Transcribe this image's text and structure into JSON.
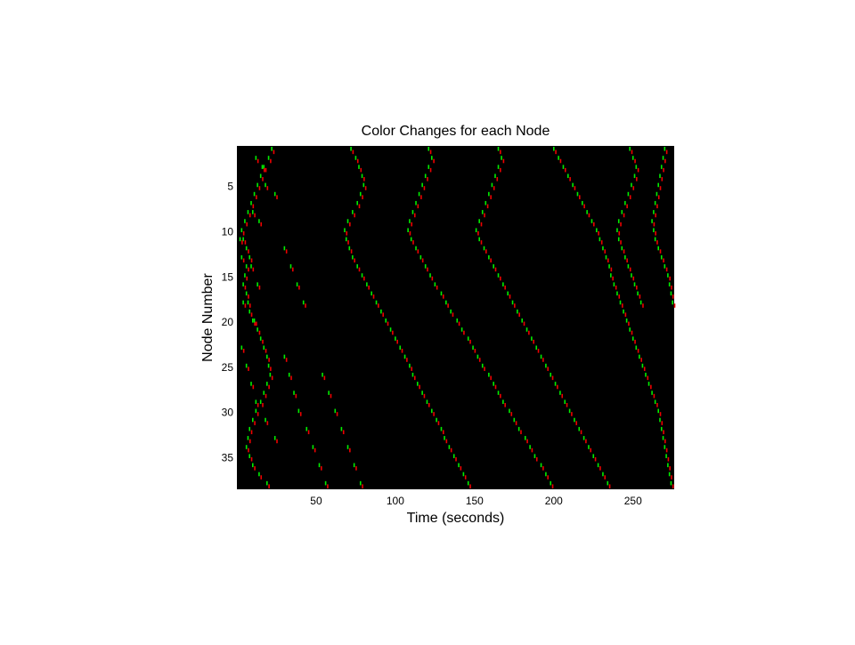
{
  "chart_data": {
    "type": "raster",
    "title": "Color Changes for each Node",
    "xlabel": "Time (seconds)",
    "ylabel": "Node Number",
    "xlim": [
      0,
      276
    ],
    "ylim": [
      0.5,
      38.5
    ],
    "y_reversed": true,
    "xticks": [
      50,
      100,
      150,
      200,
      250
    ],
    "yticks": [
      5,
      10,
      15,
      20,
      25,
      30,
      35
    ],
    "background": "#000000",
    "colors": {
      "green": "#00ee00",
      "red": "#ee0000"
    },
    "series": [
      {
        "points": [
          [
            22,
            1
          ],
          [
            20,
            2
          ],
          [
            17,
            3
          ],
          [
            15,
            4
          ],
          [
            13,
            5
          ],
          [
            11,
            6
          ],
          [
            9,
            7
          ],
          [
            7,
            8
          ],
          [
            5,
            9
          ],
          [
            3,
            10
          ],
          [
            4,
            11
          ],
          [
            6,
            12
          ],
          [
            8,
            13
          ],
          [
            6,
            14
          ],
          [
            5,
            15
          ],
          [
            4,
            16
          ],
          [
            6,
            17
          ],
          [
            7,
            18
          ],
          [
            8,
            19
          ],
          [
            10,
            20
          ],
          [
            13,
            21
          ],
          [
            15,
            22
          ],
          [
            17,
            23
          ],
          [
            19,
            24
          ],
          [
            20,
            25
          ],
          [
            21,
            26
          ],
          [
            19,
            27
          ],
          [
            17,
            28
          ],
          [
            15,
            29
          ],
          [
            12,
            30
          ],
          [
            10,
            31
          ],
          [
            8,
            32
          ],
          [
            7,
            33
          ],
          [
            6,
            34
          ],
          [
            8,
            35
          ],
          [
            10,
            36
          ],
          [
            14,
            37
          ],
          [
            19,
            38
          ]
        ]
      },
      {
        "points": [
          [
            72,
            1
          ],
          [
            75,
            2
          ],
          [
            77,
            3
          ],
          [
            79,
            4
          ],
          [
            80,
            5
          ],
          [
            78,
            6
          ],
          [
            76,
            7
          ],
          [
            73,
            8
          ],
          [
            70,
            9
          ],
          [
            68,
            10
          ],
          [
            69,
            11
          ],
          [
            71,
            12
          ],
          [
            73,
            13
          ],
          [
            76,
            14
          ],
          [
            79,
            15
          ],
          [
            82,
            16
          ],
          [
            85,
            17
          ],
          [
            88,
            18
          ],
          [
            91,
            19
          ],
          [
            94,
            20
          ],
          [
            97,
            21
          ],
          [
            100,
            22
          ],
          [
            103,
            23
          ],
          [
            106,
            24
          ],
          [
            109,
            25
          ],
          [
            111,
            26
          ],
          [
            114,
            27
          ],
          [
            117,
            28
          ],
          [
            120,
            29
          ],
          [
            123,
            30
          ],
          [
            126,
            31
          ],
          [
            129,
            32
          ],
          [
            131,
            33
          ],
          [
            134,
            34
          ],
          [
            137,
            35
          ],
          [
            140,
            36
          ],
          [
            143,
            37
          ],
          [
            146,
            38
          ]
        ]
      },
      {
        "points": [
          [
            121,
            1
          ],
          [
            123,
            2
          ],
          [
            121,
            3
          ],
          [
            119,
            4
          ],
          [
            117,
            5
          ],
          [
            115,
            6
          ],
          [
            113,
            7
          ],
          [
            111,
            8
          ],
          [
            109,
            9
          ],
          [
            108,
            10
          ],
          [
            110,
            11
          ],
          [
            113,
            12
          ],
          [
            116,
            13
          ],
          [
            119,
            14
          ],
          [
            122,
            15
          ],
          [
            125,
            16
          ],
          [
            129,
            17
          ],
          [
            132,
            18
          ],
          [
            135,
            19
          ],
          [
            139,
            20
          ],
          [
            142,
            21
          ],
          [
            146,
            22
          ],
          [
            149,
            23
          ],
          [
            152,
            24
          ],
          [
            155,
            25
          ],
          [
            159,
            26
          ],
          [
            162,
            27
          ],
          [
            165,
            28
          ],
          [
            168,
            29
          ],
          [
            172,
            30
          ],
          [
            175,
            31
          ],
          [
            178,
            32
          ],
          [
            182,
            33
          ],
          [
            185,
            34
          ],
          [
            188,
            35
          ],
          [
            192,
            36
          ],
          [
            195,
            37
          ],
          [
            198,
            38
          ]
        ]
      },
      {
        "points": [
          [
            165,
            1
          ],
          [
            167,
            2
          ],
          [
            165,
            3
          ],
          [
            163,
            4
          ],
          [
            161,
            5
          ],
          [
            159,
            6
          ],
          [
            157,
            7
          ],
          [
            155,
            8
          ],
          [
            153,
            9
          ],
          [
            151,
            10
          ],
          [
            153,
            11
          ],
          [
            156,
            12
          ],
          [
            159,
            13
          ],
          [
            162,
            14
          ],
          [
            165,
            15
          ],
          [
            168,
            16
          ],
          [
            171,
            17
          ],
          [
            174,
            18
          ],
          [
            177,
            19
          ],
          [
            180,
            20
          ],
          [
            183,
            21
          ],
          [
            186,
            22
          ],
          [
            189,
            23
          ],
          [
            192,
            24
          ],
          [
            195,
            25
          ],
          [
            198,
            26
          ],
          [
            201,
            27
          ],
          [
            204,
            28
          ],
          [
            207,
            29
          ],
          [
            210,
            30
          ],
          [
            213,
            31
          ],
          [
            216,
            32
          ],
          [
            219,
            33
          ],
          [
            222,
            34
          ],
          [
            225,
            35
          ],
          [
            228,
            36
          ],
          [
            231,
            37
          ],
          [
            234,
            38
          ]
        ]
      },
      {
        "points": [
          [
            200,
            1
          ],
          [
            203,
            2
          ],
          [
            206,
            3
          ],
          [
            209,
            4
          ],
          [
            212,
            5
          ],
          [
            215,
            6
          ],
          [
            218,
            7
          ],
          [
            221,
            8
          ],
          [
            224,
            9
          ],
          [
            227,
            10
          ],
          [
            229,
            11
          ],
          [
            231,
            12
          ],
          [
            233,
            13
          ],
          [
            235,
            14
          ],
          [
            236,
            15
          ],
          [
            238,
            16
          ],
          [
            240,
            17
          ],
          [
            242,
            18
          ],
          [
            244,
            19
          ],
          [
            246,
            20
          ],
          [
            248,
            21
          ],
          [
            250,
            22
          ],
          [
            252,
            23
          ],
          [
            254,
            24
          ],
          [
            256,
            25
          ],
          [
            258,
            26
          ],
          [
            260,
            27
          ],
          [
            262,
            28
          ],
          [
            264,
            29
          ],
          [
            266,
            30
          ],
          [
            267,
            31
          ],
          [
            268,
            32
          ],
          [
            269,
            33
          ],
          [
            270,
            34
          ],
          [
            271,
            35
          ],
          [
            272,
            36
          ],
          [
            273,
            37
          ],
          [
            274,
            38
          ]
        ]
      },
      {
        "points": [
          [
            248,
            1
          ],
          [
            250,
            2
          ],
          [
            252,
            3
          ],
          [
            251,
            4
          ],
          [
            249,
            5
          ],
          [
            247,
            6
          ],
          [
            245,
            7
          ],
          [
            243,
            8
          ],
          [
            241,
            9
          ],
          [
            240,
            10
          ],
          [
            241,
            11
          ],
          [
            243,
            12
          ],
          [
            245,
            13
          ],
          [
            247,
            14
          ],
          [
            249,
            15
          ],
          [
            251,
            16
          ],
          [
            253,
            17
          ],
          [
            255,
            18
          ]
        ]
      },
      {
        "points": [
          [
            270,
            1
          ],
          [
            269,
            2
          ],
          [
            268,
            3
          ],
          [
            267,
            4
          ],
          [
            266,
            5
          ],
          [
            265,
            6
          ],
          [
            264,
            7
          ],
          [
            263,
            8
          ],
          [
            262,
            9
          ],
          [
            263,
            10
          ],
          [
            264,
            11
          ],
          [
            266,
            12
          ],
          [
            268,
            13
          ],
          [
            270,
            14
          ],
          [
            272,
            15
          ],
          [
            273,
            16
          ],
          [
            274,
            17
          ],
          [
            275,
            18
          ]
        ]
      },
      {
        "points": [
          [
            12,
            2
          ],
          [
            16,
            3
          ],
          [
            18,
            5
          ],
          [
            24,
            6
          ],
          [
            10,
            8
          ],
          [
            14,
            9
          ],
          [
            2,
            11
          ],
          [
            3,
            13
          ],
          [
            9,
            14
          ],
          [
            13,
            16
          ],
          [
            4,
            18
          ],
          [
            11,
            20
          ],
          [
            3,
            23
          ],
          [
            6,
            25
          ],
          [
            9,
            27
          ],
          [
            12,
            29
          ],
          [
            18,
            31
          ],
          [
            24,
            33
          ],
          [
            30,
            12
          ],
          [
            34,
            14
          ],
          [
            38,
            16
          ],
          [
            42,
            18
          ],
          [
            30,
            24
          ],
          [
            33,
            26
          ],
          [
            36,
            28
          ],
          [
            39,
            30
          ],
          [
            44,
            32
          ],
          [
            48,
            34
          ],
          [
            52,
            36
          ],
          [
            56,
            38
          ],
          [
            54,
            26
          ],
          [
            58,
            28
          ],
          [
            62,
            30
          ],
          [
            66,
            32
          ],
          [
            70,
            34
          ],
          [
            74,
            36
          ],
          [
            78,
            38
          ]
        ]
      }
    ]
  }
}
